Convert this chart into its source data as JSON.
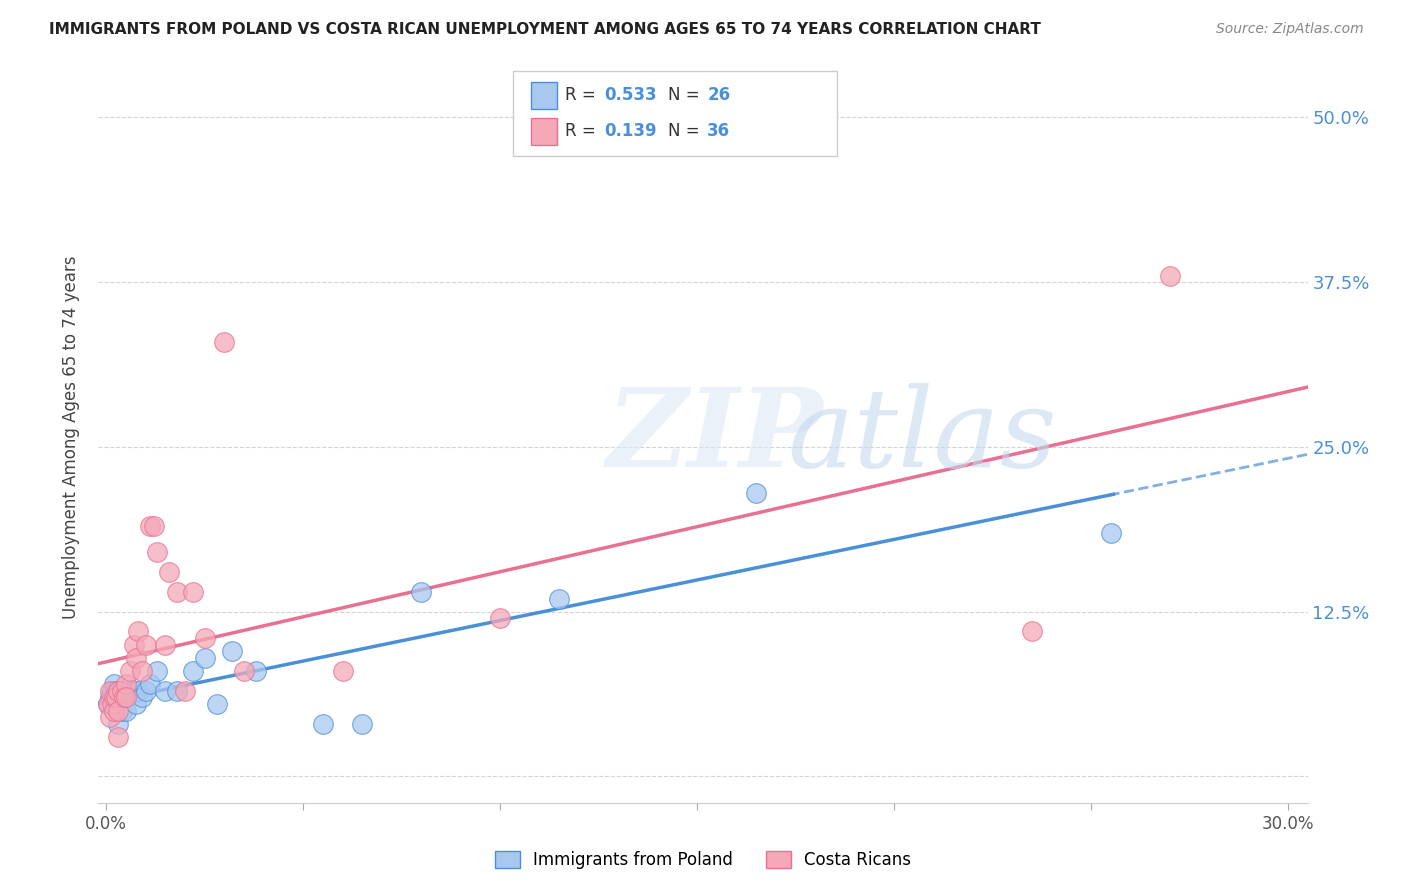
{
  "title": "IMMIGRANTS FROM POLAND VS COSTA RICAN UNEMPLOYMENT AMONG AGES 65 TO 74 YEARS CORRELATION CHART",
  "source": "Source: ZipAtlas.com",
  "ylabel": "Unemployment Among Ages 65 to 74 years",
  "xlim": [
    -0.002,
    0.305
  ],
  "ylim": [
    -0.02,
    0.535
  ],
  "xticks": [
    0.0,
    0.05,
    0.1,
    0.15,
    0.2,
    0.25,
    0.3
  ],
  "xticklabels": [
    "0.0%",
    "",
    "",
    "",
    "",
    "",
    "30.0%"
  ],
  "yticks_right": [
    0.0,
    0.125,
    0.25,
    0.375,
    0.5
  ],
  "yticklabels_right": [
    "",
    "12.5%",
    "25.0%",
    "37.5%",
    "50.0%"
  ],
  "background_color": "#ffffff",
  "grid_color": "#d0d0d0",
  "color_blue": "#a8c8f0",
  "color_pink": "#f4a8b8",
  "line_color_blue": "#4a90d9",
  "line_color_pink": "#e87090",
  "blue_scatter_x": [
    0.0005,
    0.001,
    0.0015,
    0.002,
    0.002,
    0.0025,
    0.003,
    0.003,
    0.0035,
    0.004,
    0.004,
    0.005,
    0.005,
    0.006,
    0.007,
    0.0075,
    0.008,
    0.009,
    0.01,
    0.011,
    0.013,
    0.015,
    0.018,
    0.022,
    0.025,
    0.028,
    0.032,
    0.038,
    0.055,
    0.065,
    0.08,
    0.115,
    0.165,
    0.255
  ],
  "blue_scatter_y": [
    0.055,
    0.06,
    0.065,
    0.055,
    0.07,
    0.065,
    0.055,
    0.04,
    0.065,
    0.06,
    0.05,
    0.06,
    0.05,
    0.065,
    0.065,
    0.055,
    0.065,
    0.06,
    0.065,
    0.07,
    0.08,
    0.065,
    0.065,
    0.08,
    0.09,
    0.055,
    0.095,
    0.08,
    0.04,
    0.04,
    0.14,
    0.135,
    0.215,
    0.185
  ],
  "pink_scatter_x": [
    0.0005,
    0.001,
    0.001,
    0.0015,
    0.002,
    0.002,
    0.0025,
    0.003,
    0.003,
    0.003,
    0.004,
    0.0045,
    0.005,
    0.005,
    0.006,
    0.007,
    0.0075,
    0.008,
    0.009,
    0.01,
    0.011,
    0.012,
    0.013,
    0.015,
    0.016,
    0.018,
    0.02,
    0.022,
    0.025,
    0.03,
    0.035,
    0.06,
    0.1,
    0.235,
    0.27
  ],
  "pink_scatter_y": [
    0.055,
    0.045,
    0.065,
    0.055,
    0.05,
    0.06,
    0.06,
    0.065,
    0.05,
    0.03,
    0.065,
    0.06,
    0.07,
    0.06,
    0.08,
    0.1,
    0.09,
    0.11,
    0.08,
    0.1,
    0.19,
    0.19,
    0.17,
    0.1,
    0.155,
    0.14,
    0.065,
    0.14,
    0.105,
    0.33,
    0.08,
    0.08,
    0.12,
    0.11,
    0.38
  ]
}
